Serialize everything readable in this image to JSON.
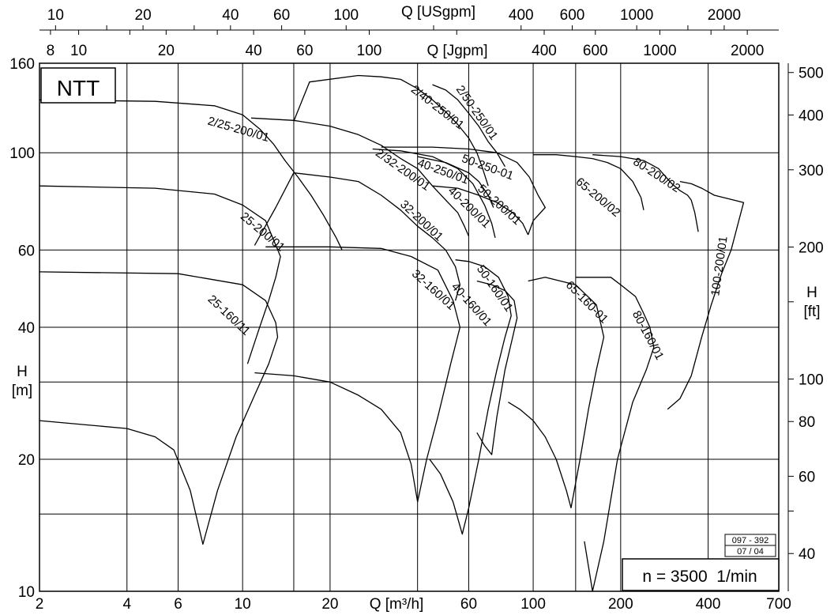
{
  "chart_data": {
    "type": "line",
    "title": "NTT",
    "series_identifier": "n = 3500  1/min",
    "doc_code": [
      "097 - 392",
      "07 / 04"
    ],
    "x_axis": {
      "label": "Q [m³/h]",
      "scale": "log",
      "range": [
        2,
        700
      ],
      "ticks": [
        {
          "v": 2,
          "t": "2"
        },
        {
          "v": 4,
          "t": "4"
        },
        {
          "v": 6,
          "t": "6"
        },
        {
          "v": 10,
          "t": "10"
        },
        {
          "v": 20,
          "t": "20"
        },
        {
          "v": 60,
          "t": "60"
        },
        {
          "v": 100,
          "t": "100"
        },
        {
          "v": 200,
          "t": "200"
        },
        {
          "v": 400,
          "t": "400"
        },
        {
          "v": 700,
          "t": "700"
        }
      ],
      "grid": [
        4,
        6,
        10,
        15,
        20,
        40,
        60,
        100,
        140,
        200,
        400
      ]
    },
    "y_left": {
      "label": [
        "H",
        "[m]"
      ],
      "scale": "log",
      "range": [
        10,
        160
      ],
      "ticks": [
        {
          "v": 10,
          "t": "10"
        },
        {
          "v": 20,
          "t": "20"
        },
        {
          "v": 40,
          "t": "40"
        },
        {
          "v": 60,
          "t": "60"
        },
        {
          "v": 100,
          "t": "100"
        },
        {
          "v": 160,
          "t": "160"
        }
      ],
      "grid": [
        15,
        20,
        30,
        40,
        60,
        100,
        160
      ]
    },
    "y_right": {
      "label": [
        "H",
        "[ft]"
      ],
      "ticks": [
        {
          "v": 40,
          "t": "40"
        },
        {
          "v": 60,
          "t": "60"
        },
        {
          "v": 80,
          "t": "80"
        },
        {
          "v": 100,
          "t": "100"
        },
        {
          "v": 200,
          "t": "200"
        },
        {
          "v": 300,
          "t": "300"
        },
        {
          "v": 400,
          "t": "400"
        },
        {
          "v": 500,
          "t": "500"
        }
      ],
      "minor": [
        50,
        150
      ]
    },
    "top_axis_usgpm": {
      "label": "Q [USgpm]",
      "ticks": [
        {
          "v": 10,
          "t": "10"
        },
        {
          "v": 20,
          "t": "20"
        },
        {
          "v": 40,
          "t": "40"
        },
        {
          "v": 60,
          "t": "60"
        },
        {
          "v": 100,
          "t": "100"
        },
        {
          "v": 400,
          "t": "400"
        },
        {
          "v": 600,
          "t": "600"
        },
        {
          "v": 1000,
          "t": "1000"
        },
        {
          "v": 2000,
          "t": "2000"
        }
      ],
      "minor": [
        15,
        30,
        200,
        1500
      ]
    },
    "top_axis_jgpm": {
      "label": "Q [Jgpm]",
      "ticks": [
        {
          "v": 8,
          "t": "8"
        },
        {
          "v": 10,
          "t": "10"
        },
        {
          "v": 20,
          "t": "20"
        },
        {
          "v": 40,
          "t": "40"
        },
        {
          "v": 60,
          "t": "60"
        },
        {
          "v": 100,
          "t": "100"
        },
        {
          "v": 400,
          "t": "400"
        },
        {
          "v": 600,
          "t": "600"
        },
        {
          "v": 1000,
          "t": "1000"
        },
        {
          "v": 2000,
          "t": "2000"
        }
      ],
      "minor": [
        15,
        30,
        200,
        1500
      ]
    },
    "regions": [
      {
        "name": "25-160/11",
        "outline": [
          [
            2,
            24.5
          ],
          [
            4,
            23.5
          ],
          [
            5,
            22.5
          ],
          [
            5.8,
            21
          ],
          [
            6.6,
            17
          ],
          [
            7.3,
            12.8
          ],
          [
            8.2,
            17
          ],
          [
            9.5,
            22.5
          ],
          [
            11,
            28
          ],
          [
            12.3,
            33
          ],
          [
            13.2,
            38
          ],
          [
            13,
            41
          ],
          [
            12,
            46
          ],
          [
            10,
            50
          ],
          [
            6,
            53
          ],
          [
            2,
            53.5
          ]
        ]
      },
      {
        "name": "25-200/01",
        "outline": [
          [
            2,
            84
          ],
          [
            5,
            83
          ],
          [
            8,
            80.5
          ],
          [
            10,
            76
          ],
          [
            12,
            70
          ],
          [
            13.5,
            58
          ],
          [
            13,
            52
          ],
          [
            12.3,
            46
          ],
          [
            11.3,
            39
          ],
          [
            10.4,
            33
          ]
        ]
      },
      {
        "name": "2/25-200/01",
        "outline": [
          [
            2,
            132
          ],
          [
            5,
            131
          ],
          [
            8,
            128
          ],
          [
            10,
            122
          ],
          [
            11.5,
            113
          ],
          [
            12.8,
            104.5
          ],
          [
            14,
            96
          ],
          [
            15.5,
            88
          ],
          [
            17.2,
            80
          ],
          [
            19,
            72
          ],
          [
            21,
            64
          ],
          [
            22,
            60
          ]
        ]
      },
      {
        "name": "32-160/01",
        "outline": [
          [
            11,
            31.5
          ],
          [
            15,
            31
          ],
          [
            20,
            30
          ],
          [
            25,
            28
          ],
          [
            30,
            26
          ],
          [
            35,
            23
          ],
          [
            38,
            19.5
          ],
          [
            40,
            16
          ],
          [
            43,
            20
          ],
          [
            47,
            25
          ],
          [
            52,
            33
          ],
          [
            56,
            40
          ],
          [
            53,
            46
          ],
          [
            47,
            54
          ],
          [
            38,
            58
          ],
          [
            30,
            60.5
          ],
          [
            20,
            61
          ],
          [
            12,
            61
          ]
        ]
      },
      {
        "name": "32-200/01",
        "outline": [
          [
            11,
            61.5
          ],
          [
            13,
            75
          ],
          [
            15,
            90
          ],
          [
            20,
            88
          ],
          [
            25,
            86
          ],
          [
            30,
            80
          ],
          [
            35,
            74
          ],
          [
            40,
            68
          ],
          [
            45,
            64
          ],
          [
            50,
            60
          ],
          [
            54,
            55
          ],
          [
            56,
            50
          ],
          [
            54,
            46
          ]
        ]
      },
      {
        "name": "2/32-200/01",
        "outline": [
          [
            10.7,
            120
          ],
          [
            15,
            118.5
          ],
          [
            20,
            115
          ],
          [
            25,
            110
          ],
          [
            30,
            104
          ],
          [
            35,
            97
          ],
          [
            40,
            92
          ],
          [
            45,
            84
          ],
          [
            50,
            78
          ],
          [
            55,
            73
          ],
          [
            58,
            68
          ],
          [
            60,
            64.5
          ]
        ]
      },
      {
        "name": "40-160/01",
        "outline": [
          [
            44,
            20
          ],
          [
            48,
            18.5
          ],
          [
            53,
            16
          ],
          [
            57,
            13.5
          ],
          [
            60,
            15.5
          ],
          [
            65,
            20
          ],
          [
            70,
            26
          ],
          [
            75,
            32
          ],
          [
            80,
            38
          ],
          [
            84,
            42.5
          ],
          [
            82,
            47
          ],
          [
            76,
            52
          ],
          [
            68,
            55
          ],
          [
            60,
            56.5
          ],
          [
            54,
            57
          ]
        ]
      },
      {
        "name": "40-200/01",
        "outline": [
          [
            28,
            102
          ],
          [
            35,
            101
          ],
          [
            45,
            98
          ],
          [
            55,
            92
          ],
          [
            62,
            85
          ],
          [
            68,
            76
          ],
          [
            72,
            69
          ],
          [
            74,
            64
          ]
        ]
      },
      {
        "name": "40-250/01",
        "outline": [
          [
            40,
            98
          ],
          [
            50,
            95
          ],
          [
            60,
            90
          ],
          [
            65,
            86
          ],
          [
            70,
            80
          ],
          [
            73,
            75
          ]
        ]
      },
      {
        "name": "2/40-250/01",
        "outline": [
          [
            15,
            118
          ],
          [
            17,
            145
          ],
          [
            25,
            150
          ],
          [
            30,
            149
          ],
          [
            35,
            147
          ],
          [
            40,
            140
          ],
          [
            45,
            132
          ],
          [
            50,
            124
          ],
          [
            55,
            116
          ],
          [
            60,
            108
          ],
          [
            64,
            100
          ],
          [
            67,
            92
          ],
          [
            70,
            84
          ]
        ]
      },
      {
        "name": "2/50-250/01",
        "outline": [
          [
            45,
            143
          ],
          [
            50,
            139
          ],
          [
            55,
            132
          ],
          [
            60,
            123
          ],
          [
            65,
            115
          ],
          [
            70,
            106
          ],
          [
            75,
            100
          ],
          [
            80,
            93
          ]
        ]
      },
      {
        "name": "50-160/01",
        "outline": [
          [
            64,
            23
          ],
          [
            68,
            21.5
          ],
          [
            72,
            20.5
          ],
          [
            75,
            25
          ],
          [
            80,
            32
          ],
          [
            85,
            38
          ],
          [
            88,
            42
          ],
          [
            86,
            46
          ],
          [
            80,
            48.5
          ],
          [
            72,
            50
          ],
          [
            64,
            51
          ]
        ]
      },
      {
        "name": "50-200/01",
        "outline": [
          [
            45,
            84
          ],
          [
            55,
            83
          ],
          [
            65,
            80
          ],
          [
            75,
            77
          ],
          [
            85,
            73
          ],
          [
            92,
            69
          ],
          [
            96,
            65
          ]
        ]
      },
      {
        "name": "50-250-01",
        "outline": [
          [
            30,
            103
          ],
          [
            45,
            103
          ],
          [
            60,
            102
          ],
          [
            75,
            100
          ],
          [
            88,
            95
          ],
          [
            97,
            88
          ],
          [
            104,
            80
          ],
          [
            110,
            75
          ],
          [
            100,
            70
          ],
          [
            96,
            65
          ]
        ]
      },
      {
        "name": "65-160-01",
        "outline": [
          [
            82,
            27
          ],
          [
            90,
            26
          ],
          [
            100,
            24.5
          ],
          [
            110,
            22.5
          ],
          [
            120,
            20
          ],
          [
            130,
            17
          ],
          [
            135,
            15.5
          ],
          [
            145,
            20
          ],
          [
            155,
            26
          ],
          [
            165,
            32
          ],
          [
            175,
            38
          ],
          [
            165,
            45
          ],
          [
            140,
            50
          ],
          [
            110,
            52
          ],
          [
            96,
            51
          ]
        ]
      },
      {
        "name": "65-200/02",
        "outline": [
          [
            100,
            99
          ],
          [
            120,
            99
          ],
          [
            140,
            98
          ],
          [
            160,
            97
          ],
          [
            180,
            95
          ],
          [
            200,
            92
          ],
          [
            220,
            86
          ],
          [
            235,
            79
          ],
          [
            240,
            74
          ]
        ]
      },
      {
        "name": "80-160/01",
        "outline": [
          [
            150,
            13
          ],
          [
            160,
            10
          ],
          [
            175,
            13
          ],
          [
            195,
            20
          ],
          [
            220,
            27
          ],
          [
            245,
            32
          ],
          [
            260,
            36
          ],
          [
            252,
            40
          ],
          [
            240,
            43
          ],
          [
            225,
            47
          ],
          [
            200,
            50
          ],
          [
            185,
            52
          ],
          [
            160,
            52
          ],
          [
            140,
            52
          ]
        ]
      },
      {
        "name": "80-200/02",
        "outline": [
          [
            160,
            99
          ],
          [
            200,
            98
          ],
          [
            240,
            96
          ],
          [
            270,
            92
          ],
          [
            300,
            85
          ],
          [
            320,
            82
          ],
          [
            340,
            80
          ],
          [
            350,
            78
          ],
          [
            360,
            73
          ],
          [
            370,
            66
          ]
        ]
      },
      {
        "name": "100-200/01",
        "outline": [
          [
            290,
            26
          ],
          [
            320,
            27.5
          ],
          [
            350,
            31
          ],
          [
            380,
            38
          ],
          [
            410,
            45
          ],
          [
            445,
            53
          ],
          [
            480,
            60
          ],
          [
            510,
            70
          ],
          [
            530,
            77
          ],
          [
            420,
            80
          ],
          [
            380,
            83
          ],
          [
            350,
            85
          ],
          [
            320,
            86
          ]
        ]
      }
    ],
    "labels": [
      {
        "name": "25-160/11",
        "q": 8.8,
        "h": 42,
        "rot": 43
      },
      {
        "name": "25-200/01",
        "q": 11.5,
        "h": 65,
        "rot": 40
      },
      {
        "name": "2/25-200/01",
        "q": 9.6,
        "h": 111,
        "rot": 16
      },
      {
        "name": "32-160/01",
        "q": 44.5,
        "h": 48,
        "rot": 42
      },
      {
        "name": "32-200/01",
        "q": 40.5,
        "h": 69,
        "rot": 43
      },
      {
        "name": "2/32-200/01",
        "q": 35,
        "h": 90,
        "rot": 35
      },
      {
        "name": "40-160/01",
        "q": 60,
        "h": 44.5,
        "rot": 48
      },
      {
        "name": "40-200/01",
        "q": 59,
        "h": 74,
        "rot": 44
      },
      {
        "name": "40-250/01",
        "q": 48.5,
        "h": 89,
        "rot": 20
      },
      {
        "name": "2/40-250/01",
        "q": 46,
        "h": 125,
        "rot": 38
      },
      {
        "name": "2/50-250/01",
        "q": 62.5,
        "h": 122,
        "rot": 55
      },
      {
        "name": "50-160/01",
        "q": 72,
        "h": 48.5,
        "rot": 55
      },
      {
        "name": "50-200/01",
        "q": 75,
        "h": 75,
        "rot": 42
      },
      {
        "name": "50-250-01",
        "q": 69,
        "h": 91,
        "rot": 20
      },
      {
        "name": "65-160-01",
        "q": 150,
        "h": 45,
        "rot": 45
      },
      {
        "name": "65-200/02",
        "q": 164,
        "h": 78,
        "rot": 40
      },
      {
        "name": "80-160/01",
        "q": 242,
        "h": 38,
        "rot": 62
      },
      {
        "name": "80-200/02",
        "q": 262,
        "h": 87.5,
        "rot": 33
      },
      {
        "name": "100-200/01",
        "q": 450,
        "h": 55,
        "rot": -82
      }
    ]
  }
}
